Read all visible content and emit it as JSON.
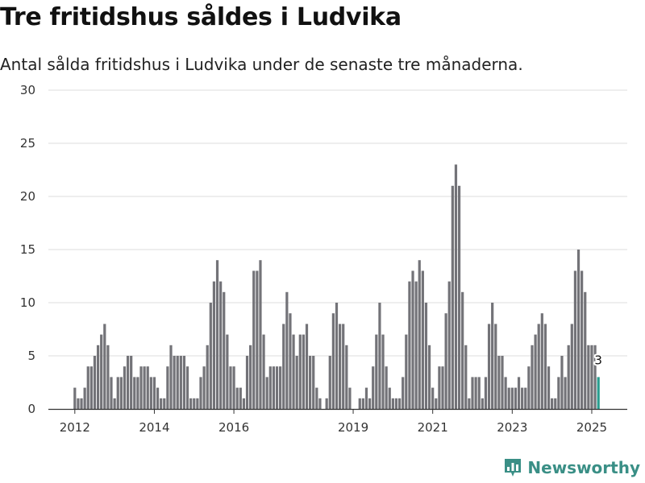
{
  "header": {
    "title": "Tre fritidshus såldes i Ludvika",
    "subtitle": "Antal sålda fritidshus i Ludvika under de senaste tre månaderna."
  },
  "brand": {
    "name": "Newsworthy",
    "icon": "newsworthy-logo-icon",
    "color": "#3a8f86"
  },
  "colors": {
    "bar": "#737378",
    "highlight": "#2a9d8f",
    "grid": "#dddddd",
    "axis": "#333333"
  },
  "chart_data": {
    "type": "bar",
    "title": "Tre fritidshus såldes i Ludvika",
    "subtitle": "Antal sålda fritidshus i Ludvika under de senaste tre månaderna.",
    "xlabel": "",
    "ylabel": "",
    "ylim": [
      0,
      30
    ],
    "y_ticks": [
      0,
      5,
      10,
      15,
      20,
      25,
      30
    ],
    "x_ticks": [
      {
        "label": "2012",
        "month": "2012-01"
      },
      {
        "label": "2014",
        "month": "2014-01"
      },
      {
        "label": "2016",
        "month": "2016-01"
      },
      {
        "label": "2019",
        "month": "2019-01"
      },
      {
        "label": "2021",
        "month": "2021-01"
      },
      {
        "label": "2023",
        "month": "2023-01"
      },
      {
        "label": "2025",
        "month": "2025-01"
      }
    ],
    "start_month": "2012-01",
    "grid": true,
    "legend": "none",
    "highlight": {
      "month": "2025-03",
      "value": 3,
      "label": "3"
    },
    "values": [
      2,
      1,
      1,
      2,
      4,
      4,
      5,
      6,
      7,
      8,
      6,
      3,
      1,
      3,
      3,
      4,
      5,
      5,
      3,
      3,
      4,
      4,
      4,
      3,
      3,
      2,
      1,
      1,
      4,
      6,
      5,
      5,
      5,
      5,
      4,
      1,
      1,
      1,
      3,
      4,
      6,
      10,
      12,
      14,
      12,
      11,
      7,
      4,
      4,
      2,
      2,
      1,
      5,
      6,
      13,
      13,
      14,
      7,
      3,
      4,
      4,
      4,
      4,
      8,
      11,
      9,
      7,
      5,
      7,
      7,
      8,
      5,
      5,
      2,
      1,
      0,
      1,
      5,
      9,
      10,
      8,
      8,
      6,
      2,
      0,
      0,
      1,
      1,
      2,
      1,
      4,
      7,
      10,
      7,
      4,
      2,
      1,
      1,
      1,
      3,
      7,
      12,
      13,
      12,
      14,
      13,
      10,
      6,
      2,
      1,
      4,
      4,
      9,
      12,
      21,
      23,
      21,
      11,
      6,
      1,
      3,
      3,
      3,
      1,
      3,
      8,
      10,
      8,
      5,
      5,
      3,
      2,
      2,
      2,
      3,
      2,
      2,
      4,
      6,
      7,
      8,
      9,
      8,
      4,
      1,
      1,
      3,
      5,
      3,
      6,
      8,
      13,
      15,
      13,
      11,
      6,
      6,
      6,
      3
    ]
  }
}
